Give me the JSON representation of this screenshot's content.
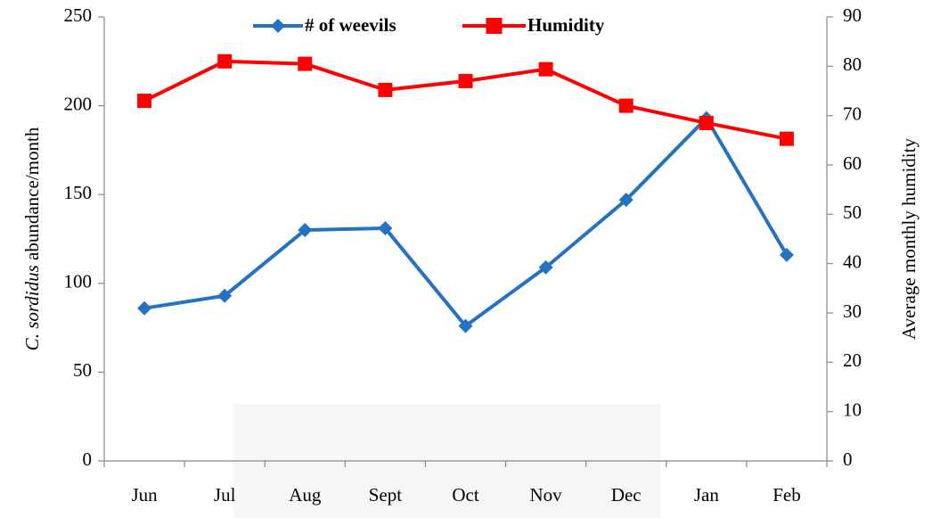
{
  "chart_data": {
    "type": "line",
    "y_label": [
      "C. sordidus",
      "abundance/month"
    ],
    "y2_label": "Average monthly humidity",
    "categories": [
      "Jun",
      "Jul",
      "Aug",
      "Sept",
      "Oct",
      "Nov",
      "Dec",
      "Jan",
      "Feb"
    ],
    "series": [
      {
        "name": "# of weevils",
        "color": "#2472c1",
        "marker": "diamond",
        "values": [
          86,
          93,
          130,
          131,
          76,
          109,
          147,
          193,
          116
        ]
      },
      {
        "name": "Humidity",
        "color": "#ff0000",
        "marker": "square",
        "axis": "y2",
        "values": [
          73,
          81,
          80.5,
          75.2,
          77,
          79.4,
          72,
          68.5,
          65.3
        ]
      }
    ],
    "ylim": [
      0,
      250
    ],
    "yticks": [
      0,
      50,
      100,
      150,
      200,
      250
    ],
    "y2lim": [
      0,
      90
    ],
    "y2ticks": [
      0,
      10,
      20,
      30,
      40,
      50,
      60,
      70,
      80,
      90
    ],
    "legend": "top"
  }
}
